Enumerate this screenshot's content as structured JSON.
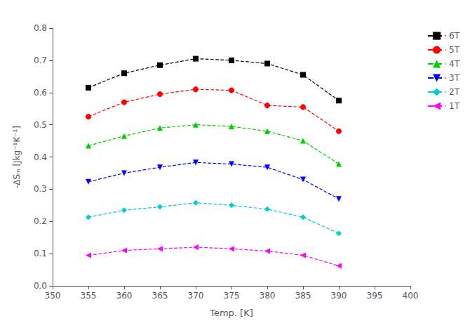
{
  "chart_data": {
    "type": "line",
    "xlabel": "Temp. [K]",
    "ylabel": "-ΔSₘ [Jkg⁻¹K⁻¹]",
    "xlim": [
      350,
      400
    ],
    "ylim": [
      0,
      0.8
    ],
    "xticks": [
      350,
      355,
      360,
      365,
      370,
      375,
      380,
      385,
      390,
      395,
      400
    ],
    "yticks": [
      {
        "value": 0,
        "label": "0.0"
      },
      0.1,
      0.2,
      0.3,
      0.4,
      0.5,
      0.6,
      0.7,
      0.8
    ],
    "x": [
      355,
      360,
      365,
      370,
      375,
      380,
      385,
      390
    ],
    "series": [
      {
        "name": "6T",
        "color": "#000000",
        "marker": "square",
        "values": [
          0.615,
          0.66,
          0.685,
          0.705,
          0.7,
          0.69,
          0.655,
          0.575
        ]
      },
      {
        "name": "5T",
        "color": "#ff0000",
        "marker": "circle",
        "values": [
          0.525,
          0.57,
          0.595,
          0.61,
          0.607,
          0.56,
          0.555,
          0.48
        ]
      },
      {
        "name": "4T",
        "color": "#00cc00",
        "marker": "triangle-up",
        "values": [
          0.435,
          0.465,
          0.49,
          0.5,
          0.495,
          0.48,
          0.45,
          0.378
        ]
      },
      {
        "name": "3T",
        "color": "#0000ff",
        "marker": "triangle-down",
        "values": [
          0.323,
          0.35,
          0.368,
          0.383,
          0.378,
          0.368,
          0.33,
          0.27
        ]
      },
      {
        "name": "2T",
        "color": "#00cccc",
        "marker": "diamond",
        "values": [
          0.213,
          0.235,
          0.245,
          0.258,
          0.25,
          0.238,
          0.213,
          0.163
        ]
      },
      {
        "name": "1T",
        "color": "#ff00ff",
        "marker": "triangle-left",
        "values": [
          0.095,
          0.11,
          0.115,
          0.12,
          0.115,
          0.108,
          0.095,
          0.062
        ]
      }
    ],
    "line_style": "dashed",
    "legend": "upper right",
    "grid": false
  }
}
